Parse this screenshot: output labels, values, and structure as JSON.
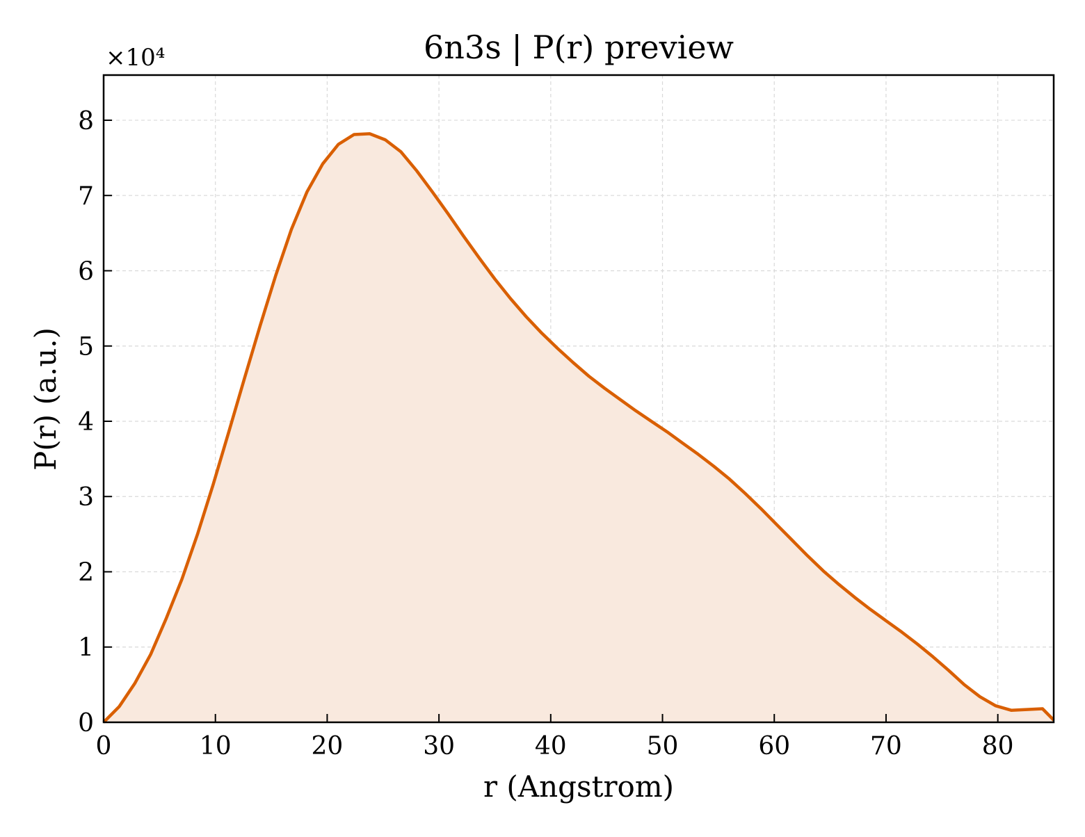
{
  "chart_data": {
    "type": "area",
    "title": "6n3s | P(r) preview",
    "xlabel": "r (Angstrom)",
    "ylabel": "P(r) (a.u.)",
    "y_multiplier_label": "×10⁴",
    "y_scale": 10000,
    "xlim": [
      0,
      85
    ],
    "ylim": [
      0,
      86000
    ],
    "x_ticks": [
      0,
      10,
      20,
      30,
      40,
      50,
      60,
      70,
      80
    ],
    "x_tick_labels": [
      "0",
      "10",
      "20",
      "30",
      "40",
      "50",
      "60",
      "70",
      "80"
    ],
    "y_ticks": [
      0,
      10000,
      20000,
      30000,
      40000,
      50000,
      60000,
      70000,
      80000
    ],
    "y_tick_labels": [
      "0",
      "1",
      "2",
      "3",
      "4",
      "5",
      "6",
      "7",
      "8"
    ],
    "grid": true,
    "legend": "none",
    "line_color": "#d95f02",
    "fill_color": "#f9e9de",
    "series": [
      {
        "x": [
          0,
          1.4,
          2.8,
          4.2,
          5.6,
          7.0,
          8.4,
          9.8,
          11.2,
          12.6,
          14.0,
          15.4,
          16.8,
          18.2,
          19.6,
          21.0,
          22.4,
          23.8,
          25.2,
          26.6,
          28.0,
          29.4,
          30.8,
          32.2,
          33.6,
          35.0,
          36.4,
          37.8,
          39.2,
          40.6,
          42.0,
          43.4,
          44.8,
          46.2,
          47.6,
          49.0,
          50.4,
          51.8,
          53.2,
          54.6,
          56.0,
          57.4,
          58.8,
          60.2,
          61.6,
          63.0,
          64.4,
          65.8,
          67.2,
          68.6,
          70.0,
          71.4,
          72.8,
          74.2,
          75.6,
          77.0,
          78.4,
          79.8,
          81.2,
          82.6,
          84.0,
          85.0
        ],
        "y": [
          0,
          2100,
          5200,
          9000,
          13800,
          19000,
          25000,
          31600,
          38600,
          45700,
          52700,
          59400,
          65500,
          70500,
          74200,
          76800,
          78100,
          78200,
          77400,
          75800,
          73300,
          70500,
          67600,
          64600,
          61700,
          58900,
          56300,
          53900,
          51700,
          49700,
          47800,
          46000,
          44400,
          42900,
          41400,
          40000,
          38600,
          37100,
          35600,
          34000,
          32300,
          30400,
          28400,
          26300,
          24200,
          22100,
          20100,
          18300,
          16600,
          15000,
          13500,
          12000,
          10400,
          8700,
          6900,
          5000,
          3400,
          2200,
          1600,
          1700,
          1800,
          300
        ]
      }
    ]
  }
}
